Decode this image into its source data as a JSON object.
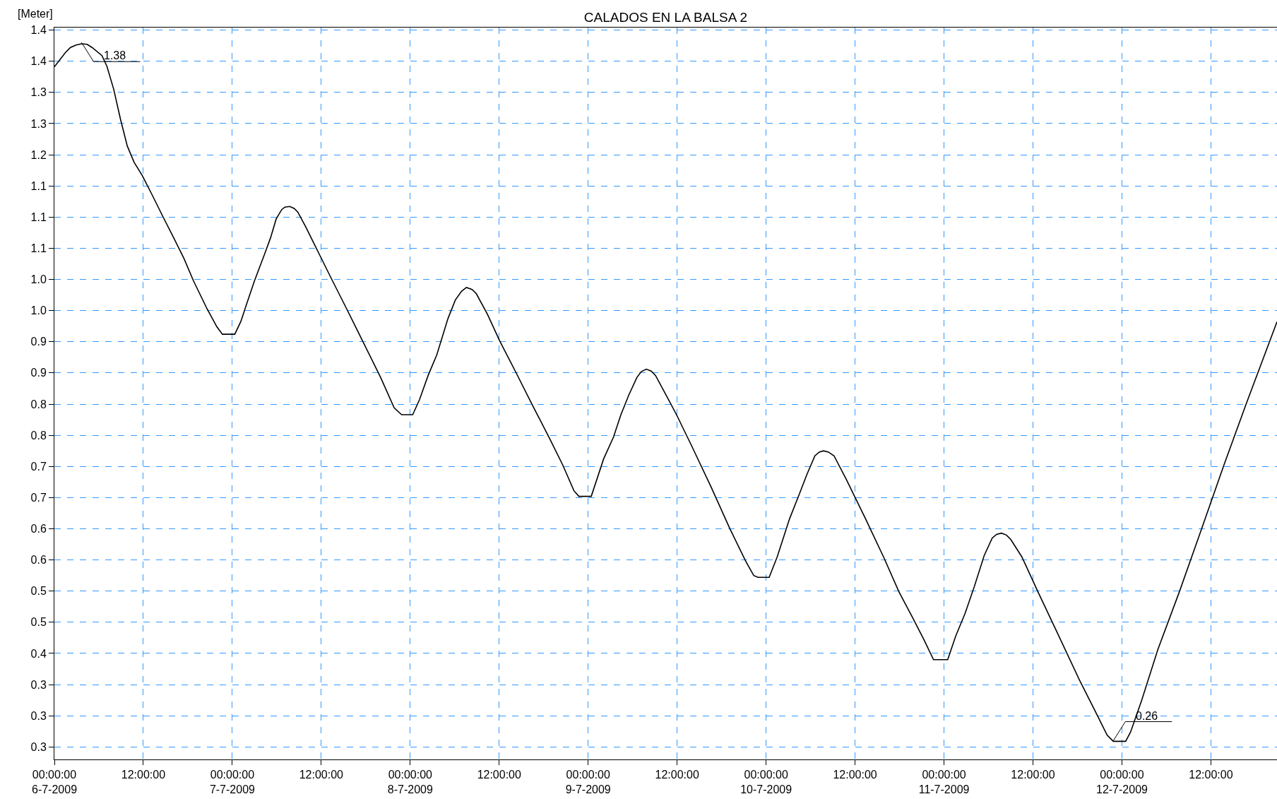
{
  "chart_data": {
    "type": "line",
    "title": "CALADOS EN LA BALSA 2",
    "ylabel": "[Meter]",
    "x": [
      "2009-07-06T00:00",
      "2009-07-06T01:30",
      "2009-07-06T02:10",
      "2009-07-06T02:55",
      "2009-07-06T03:40",
      "2009-07-06T04:25",
      "2009-07-06T05:05",
      "2009-07-06T06:25",
      "2009-07-06T07:05",
      "2009-07-06T08:00",
      "2009-07-06T08:55",
      "2009-07-06T09:50",
      "2009-07-06T10:45",
      "2009-07-06T11:50",
      "2009-07-06T13:10",
      "2009-07-06T14:35",
      "2009-07-06T16:05",
      "2009-07-06T17:30",
      "2009-07-06T18:45",
      "2009-07-06T20:35",
      "2009-07-06T21:55",
      "2009-07-06T22:40",
      "2009-07-07T00:20",
      "2009-07-07T01:10",
      "2009-07-07T01:55",
      "2009-07-07T03:00",
      "2009-07-07T04:20",
      "2009-07-07T05:10",
      "2009-07-07T05:55",
      "2009-07-07T06:40",
      "2009-07-07T07:05",
      "2009-07-07T07:45",
      "2009-07-07T08:20",
      "2009-07-07T08:50",
      "2009-07-07T09:55",
      "2009-07-07T11:00",
      "2009-07-07T11:55",
      "2009-07-07T13:25",
      "2009-07-07T15:30",
      "2009-07-07T17:45",
      "2009-07-07T20:00",
      "2009-07-07T21:50",
      "2009-07-07T22:50",
      "2009-07-08T00:20",
      "2009-07-08T01:15",
      "2009-07-08T02:25",
      "2009-07-08T03:35",
      "2009-07-08T05:05",
      "2009-07-08T06:05",
      "2009-07-08T06:55",
      "2009-07-08T07:35",
      "2009-07-08T08:20",
      "2009-07-08T08:55",
      "2009-07-08T10:25",
      "2009-07-08T12:05",
      "2009-07-08T14:15",
      "2009-07-08T16:30",
      "2009-07-08T18:55",
      "2009-07-08T20:35",
      "2009-07-08T22:05",
      "2009-07-08T22:45",
      "2009-07-09T00:25",
      "2009-07-09T02:05",
      "2009-07-09T03:25",
      "2009-07-09T04:25",
      "2009-07-09T05:30",
      "2009-07-09T06:35",
      "2009-07-09T07:10",
      "2009-07-09T07:50",
      "2009-07-09T08:30",
      "2009-07-09T09:05",
      "2009-07-09T10:35",
      "2009-07-09T11:55",
      "2009-07-09T14:00",
      "2009-07-09T16:35",
      "2009-07-09T19:05",
      "2009-07-09T21:15",
      "2009-07-09T22:20",
      "2009-07-09T22:55",
      "2009-07-10T00:25",
      "2009-07-10T01:30",
      "2009-07-10T03:10",
      "2009-07-10T04:30",
      "2009-07-10T05:30",
      "2009-07-10T06:35",
      "2009-07-10T07:10",
      "2009-07-10T07:45",
      "2009-07-10T08:25",
      "2009-07-10T09:10",
      "2009-07-10T10:50",
      "2009-07-10T13:25",
      "2009-07-10T15:55",
      "2009-07-10T17:55",
      "2009-07-10T19:50",
      "2009-07-10T21:20",
      "2009-07-10T22:35",
      "2009-07-11T00:30",
      "2009-07-11T01:35",
      "2009-07-11T02:50",
      "2009-07-11T04:05",
      "2009-07-11T05:25",
      "2009-07-11T06:30",
      "2009-07-11T07:05",
      "2009-07-11T07:45",
      "2009-07-11T08:25",
      "2009-07-11T09:00",
      "2009-07-11T10:30",
      "2009-07-11T12:40",
      "2009-07-11T15:10",
      "2009-07-11T18:10",
      "2009-07-11T20:45",
      "2009-07-11T22:00",
      "2009-07-11T22:50",
      "2009-07-12T00:30",
      "2009-07-12T01:10",
      "2009-07-12T02:40",
      "2009-07-12T04:50",
      "2009-07-12T07:45",
      "2009-07-12T10:45",
      "2009-07-12T13:45",
      "2009-07-12T16:45",
      "2009-07-12T18:50",
      "2009-07-12T20:55"
    ],
    "values": [
      1.341,
      1.364,
      1.372,
      1.376,
      1.378,
      1.377,
      1.372,
      1.359,
      1.342,
      1.305,
      1.257,
      1.214,
      1.188,
      1.167,
      1.136,
      1.102,
      1.067,
      1.033,
      0.998,
      0.953,
      0.924,
      0.912,
      0.912,
      0.933,
      0.96,
      0.998,
      1.04,
      1.067,
      1.097,
      1.112,
      1.116,
      1.117,
      1.114,
      1.108,
      1.084,
      1.058,
      1.036,
      1.0,
      0.951,
      0.897,
      0.843,
      0.794,
      0.783,
      0.783,
      0.807,
      0.846,
      0.879,
      0.937,
      0.967,
      0.981,
      0.987,
      0.984,
      0.977,
      0.944,
      0.901,
      0.851,
      0.798,
      0.742,
      0.702,
      0.661,
      0.652,
      0.652,
      0.712,
      0.747,
      0.783,
      0.815,
      0.843,
      0.852,
      0.856,
      0.853,
      0.846,
      0.813,
      0.783,
      0.732,
      0.667,
      0.601,
      0.548,
      0.525,
      0.522,
      0.522,
      0.555,
      0.616,
      0.656,
      0.687,
      0.717,
      0.723,
      0.725,
      0.723,
      0.717,
      0.679,
      0.616,
      0.553,
      0.499,
      0.456,
      0.421,
      0.39,
      0.39,
      0.428,
      0.464,
      0.507,
      0.557,
      0.585,
      0.591,
      0.593,
      0.59,
      0.583,
      0.555,
      0.499,
      0.436,
      0.36,
      0.299,
      0.269,
      0.259,
      0.259,
      0.274,
      0.325,
      0.406,
      0.499,
      0.6,
      0.702,
      0.8,
      0.866,
      0.932
    ],
    "color": "#000000",
    "line_style": "solid",
    "xlim": [
      "2009-07-06T00:00",
      "2009-07-12T20:55"
    ],
    "xticks": [
      {
        "value": "2009-07-06T00:00",
        "label": "00:00:00\n6-7-2009"
      },
      {
        "value": "2009-07-06T12:00",
        "label": "12:00:00"
      },
      {
        "value": "2009-07-07T00:00",
        "label": "00:00:00\n7-7-2009"
      },
      {
        "value": "2009-07-07T12:00",
        "label": "12:00:00"
      },
      {
        "value": "2009-07-08T00:00",
        "label": "00:00:00\n8-7-2009"
      },
      {
        "value": "2009-07-08T12:00",
        "label": "12:00:00"
      },
      {
        "value": "2009-07-09T00:00",
        "label": "00:00:00\n9-7-2009"
      },
      {
        "value": "2009-07-09T12:00",
        "label": "12:00:00"
      },
      {
        "value": "2009-07-10T00:00",
        "label": "00:00:00\n10-7-2009"
      },
      {
        "value": "2009-07-10T12:00",
        "label": "12:00:00"
      },
      {
        "value": "2009-07-11T00:00",
        "label": "00:00:00\n11-7-2009"
      },
      {
        "value": "2009-07-11T12:00",
        "label": "12:00:00"
      },
      {
        "value": "2009-07-12T00:00",
        "label": "00:00:00\n12-7-2009"
      },
      {
        "value": "2009-07-12T12:00",
        "label": "12:00:00"
      }
    ],
    "ylim": [
      0.23,
      1.404
    ],
    "yticks": [
      {
        "value": 0.25,
        "label": "0.3"
      },
      {
        "value": 0.3,
        "label": "0.3"
      },
      {
        "value": 0.35,
        "label": "0.3"
      },
      {
        "value": 0.4,
        "label": "0.4"
      },
      {
        "value": 0.45,
        "label": "0.5"
      },
      {
        "value": 0.5,
        "label": "0.5"
      },
      {
        "value": 0.55,
        "label": "0.6"
      },
      {
        "value": 0.6,
        "label": "0.6"
      },
      {
        "value": 0.65,
        "label": "0.7"
      },
      {
        "value": 0.7,
        "label": "0.7"
      },
      {
        "value": 0.75,
        "label": "0.8"
      },
      {
        "value": 0.8,
        "label": "0.8"
      },
      {
        "value": 0.85,
        "label": "0.9"
      },
      {
        "value": 0.9,
        "label": "0.9"
      },
      {
        "value": 0.95,
        "label": "1.0"
      },
      {
        "value": 1.0,
        "label": "1.0"
      },
      {
        "value": 1.05,
        "label": "1.1"
      },
      {
        "value": 1.1,
        "label": "1.1"
      },
      {
        "value": 1.15,
        "label": "1.1"
      },
      {
        "value": 1.2,
        "label": "1.2"
      },
      {
        "value": 1.25,
        "label": "1.3"
      },
      {
        "value": 1.3,
        "label": "1.3"
      },
      {
        "value": 1.35,
        "label": "1.4"
      },
      {
        "value": 1.4,
        "label": "1.4"
      }
    ],
    "grid": true,
    "annotations": [
      {
        "text": "1.38",
        "x": "2009-07-06T03:40",
        "y": 1.38
      },
      {
        "text": "0.26",
        "x": "2009-07-11T22:50",
        "y": 0.26
      }
    ]
  }
}
